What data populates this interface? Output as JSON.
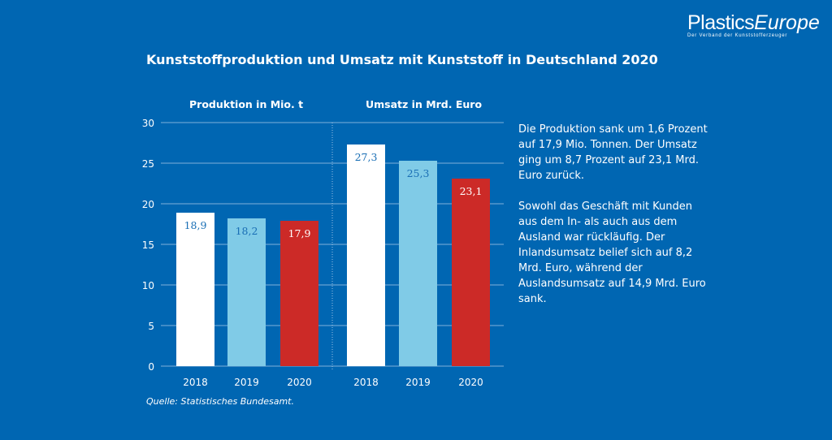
{
  "logo": {
    "brand_bold": "Plastics",
    "brand_italic": "Europe",
    "tagline": "Der Verband der Kunststofferzeuger"
  },
  "chart_data": {
    "type": "bar",
    "title": "Kunststoffproduktion und Umsatz mit Kunststoff in Deutschland 2020",
    "ylim": [
      0,
      30
    ],
    "yticks": [
      0,
      5,
      10,
      15,
      20,
      25,
      30
    ],
    "grid": true,
    "panels": [
      {
        "title": "Produktion in Mio. t",
        "categories": [
          "2018",
          "2019",
          "2020"
        ],
        "values": [
          18.9,
          18.2,
          17.9
        ],
        "labels": [
          "18,9",
          "18,2",
          "17,9"
        ]
      },
      {
        "title": "Umsatz in Mrd. Euro",
        "categories": [
          "2018",
          "2019",
          "2020"
        ],
        "values": [
          27.3,
          25.3,
          23.1
        ],
        "labels": [
          "27,3",
          "25,3",
          "23,1"
        ]
      }
    ],
    "colors": [
      "#ffffff",
      "#80cbe7",
      "#cc2a27"
    ],
    "label_colors": [
      "#1a6fb5",
      "#1a6fb5",
      "#ffffff"
    ]
  },
  "text": {
    "p1": "Die Produktion sank um 1,6 Prozent auf 17,9 Mio. Tonnen. Der Umsatz ging um 8,7 Prozent auf 23,1 Mrd. Euro zurück.",
    "p2": "Sowohl das Geschäft mit Kunden aus dem In- als auch aus dem Ausland war rückläufig. Der Inlandsumsatz belief sich auf 8,2 Mrd. Euro, während der Auslandsumsatz auf 14,9 Mrd. Euro sank."
  },
  "source": "Quelle: Statistisches Bundesamt."
}
